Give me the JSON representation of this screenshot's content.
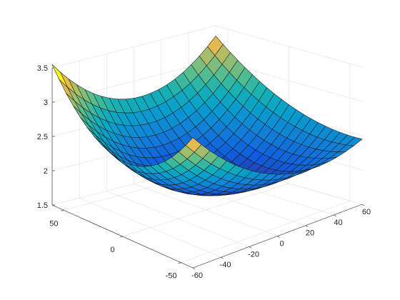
{
  "chart_data": {
    "type": "surface",
    "title": "",
    "xlabel": "",
    "ylabel": "",
    "zlabel": "",
    "xlim": [
      -60,
      60
    ],
    "ylim": [
      -60,
      60
    ],
    "zlim": [
      1.5,
      3.5
    ],
    "x_ticks": [
      "-60",
      "-40",
      "-20",
      "0",
      "20",
      "40",
      "60"
    ],
    "y_ticks": [
      "-50",
      "0",
      "50"
    ],
    "z_ticks": [
      "1.5",
      "2",
      "2.5",
      "3",
      "3.5"
    ],
    "colormap": "parula",
    "grid": true,
    "x_range": [
      -60,
      60
    ],
    "y_range": [
      -60,
      60
    ],
    "grid_count": 20,
    "surface_description": "paraboloid-like bowl",
    "z_at_corners": {
      "x-60_y60": 3.55,
      "x60_y60": 3.35,
      "x-60_y-60": 3.4,
      "x60_y-60": 2.45
    },
    "z_at_edge_midpoints": {
      "x0_y60": 2.75,
      "x0_y-60": 2.4,
      "x-60_y0": 2.6,
      "x60_y0": 2.65
    },
    "z_center": 1.85
  }
}
